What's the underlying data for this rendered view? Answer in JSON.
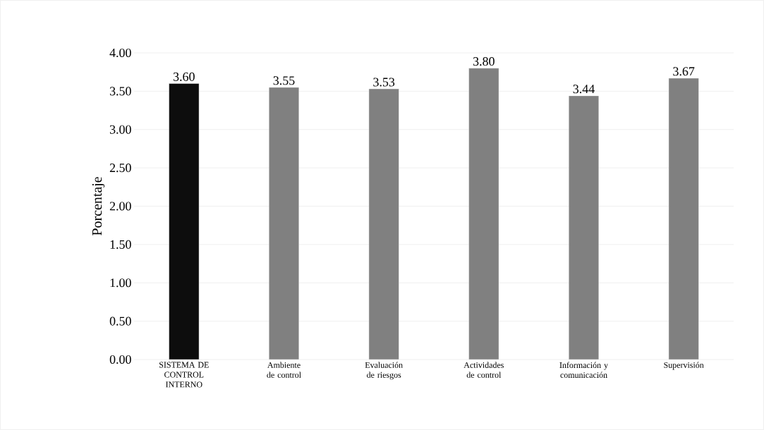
{
  "chart_data": {
    "type": "bar",
    "ylabel": "Porcentaje",
    "categories": [
      "SISTEMA DE CONTROL INTERNO",
      "Ambiente de control",
      "Evaluación de riesgos",
      "Actividades de control",
      "Información y comunicación",
      "Supervisión"
    ],
    "values": [
      3.6,
      3.55,
      3.53,
      3.8,
      3.44,
      3.67
    ],
    "value_labels": [
      "3.60",
      "3.55",
      "3.53",
      "3.80",
      "3.44",
      "3.67"
    ],
    "colors": [
      "#0d0d0d",
      "#808080",
      "#808080",
      "#808080",
      "#808080",
      "#808080"
    ],
    "ylim": [
      0,
      4
    ],
    "yticks": [
      {
        "value": 0,
        "label": "0.00"
      },
      {
        "value": 0.5,
        "label": "0.50"
      },
      {
        "value": 1,
        "label": "1.00"
      },
      {
        "value": 1.5,
        "label": "1.50"
      },
      {
        "value": 2,
        "label": "2.00"
      },
      {
        "value": 2.5,
        "label": "2.50"
      },
      {
        "value": 3,
        "label": "3.00"
      },
      {
        "value": 3.5,
        "label": "3.50"
      },
      {
        "value": 4,
        "label": "4.00"
      }
    ],
    "grid": "y"
  }
}
